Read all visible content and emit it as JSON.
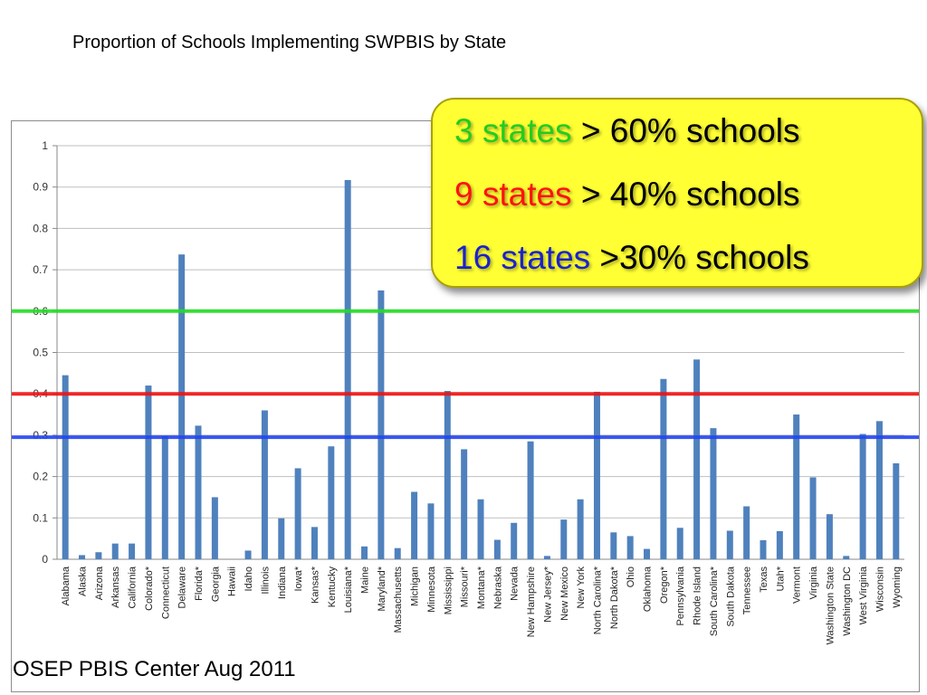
{
  "slide_title": "Proportion of Schools Implementing SWPBIS by State",
  "callout": [
    {
      "count_text": "3 states",
      "count_color": "#22cc22",
      "rest_text": " > 60% schools"
    },
    {
      "count_text": "9 states",
      "count_color": "#ff1111",
      "rest_text": " > 40% schools"
    },
    {
      "count_text": "16 states",
      "count_color": "#1a22cc",
      "rest_text": " >30% schools"
    }
  ],
  "footer": "OSEP PBIS Center Aug 2011",
  "colors": {
    "bar": "#4f81bd",
    "grid": "#bfbfbf",
    "line_60": "#22dd22",
    "line_40": "#ee1111",
    "line_30": "#2244ee"
  },
  "chart_data": {
    "type": "bar",
    "ylim": [
      0,
      1
    ],
    "yticks": [
      "0",
      "0.1",
      "0.2",
      "0.3",
      "0.4",
      "0.5",
      "0.6",
      "0.7",
      "0.8",
      "0.9",
      "1"
    ],
    "grid": true,
    "categories": [
      "Alabama",
      "Alaska",
      "Arizona",
      "Arkansas",
      "California",
      "Colorado*",
      "Connecticut",
      "Delaware",
      "Florida*",
      "Georgia",
      "Hawaii",
      "Idaho",
      "Illinois",
      "Indiana",
      "Iowa*",
      "Kansas*",
      "Kentucky",
      "Louisiana*",
      "Maine",
      "Maryland*",
      "Massachusetts",
      "Michigan",
      "Minnesota",
      "Mississippi",
      "Missouri*",
      "Montana*",
      "Nebraska",
      "Nevada",
      "New Hampshire",
      "New Jersey*",
      "New Mexico",
      "New York",
      "North Carolina*",
      "North Dakota*",
      "Ohio",
      "Oklahoma",
      "Oregon*",
      "Pennsylvania",
      "Rhode Island",
      "South Carolina*",
      "South Dakota",
      "Tennessee",
      "Texas",
      "Utah*",
      "Vermont",
      "Virginia",
      "Washington State",
      "Washington DC",
      "West Virginia",
      "Wisconsin",
      "Wyoming"
    ],
    "values": [
      0.445,
      0.01,
      0.017,
      0.038,
      0.038,
      0.42,
      0.298,
      0.737,
      0.323,
      0.15,
      0,
      0.021,
      0.36,
      0.099,
      0.22,
      0.078,
      0.273,
      0.917,
      0.031,
      0.65,
      0.027,
      0.163,
      0.135,
      0.407,
      0.266,
      0.145,
      0.047,
      0.088,
      0.285,
      0.008,
      0.096,
      0.145,
      0.405,
      0.065,
      0.056,
      0.025,
      0.436,
      0.076,
      0.483,
      0.317,
      0.069,
      0.128,
      0.046,
      0.068,
      0.35,
      0.198,
      0.109,
      0.008,
      0.303,
      0.334,
      0.232
    ],
    "reference_lines": [
      {
        "value": 0.6,
        "color_key": "line_60"
      },
      {
        "value": 0.4,
        "color_key": "line_40"
      },
      {
        "value": 0.295,
        "color_key": "line_30"
      }
    ]
  }
}
